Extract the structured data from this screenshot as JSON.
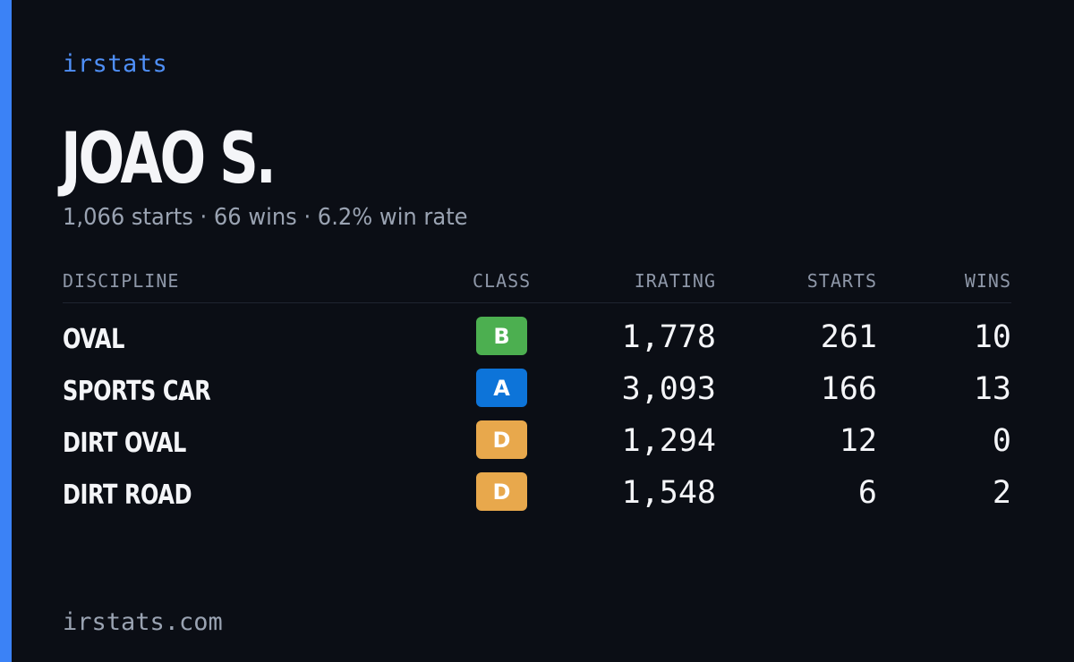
{
  "brand": "irstats",
  "driver": {
    "name": "JOAO S.",
    "summary": "1,066 starts · 66 wins · 6.2% win rate"
  },
  "table": {
    "headers": {
      "discipline": "DISCIPLINE",
      "class": "CLASS",
      "irating": "IRATING",
      "starts": "STARTS",
      "wins": "WINS"
    },
    "rows": [
      {
        "discipline": "OVAL",
        "class": "B",
        "class_color": "#4caf50",
        "irating": "1,778",
        "starts": "261",
        "wins": "10"
      },
      {
        "discipline": "SPORTS CAR",
        "class": "A",
        "class_color": "#0d74d9",
        "irating": "3,093",
        "starts": "166",
        "wins": "13"
      },
      {
        "discipline": "DIRT OVAL",
        "class": "D",
        "class_color": "#e8a84c",
        "irating": "1,294",
        "starts": "12",
        "wins": "0"
      },
      {
        "discipline": "DIRT ROAD",
        "class": "D",
        "class_color": "#e8a84c",
        "irating": "1,548",
        "starts": "6",
        "wins": "2"
      }
    ]
  },
  "footer": {
    "url": "irstats.com"
  },
  "colors": {
    "background": "#0b0e15",
    "accent": "#3b82f6",
    "brand_text": "#4f8ff7",
    "muted_text": "#9aa3b2"
  }
}
